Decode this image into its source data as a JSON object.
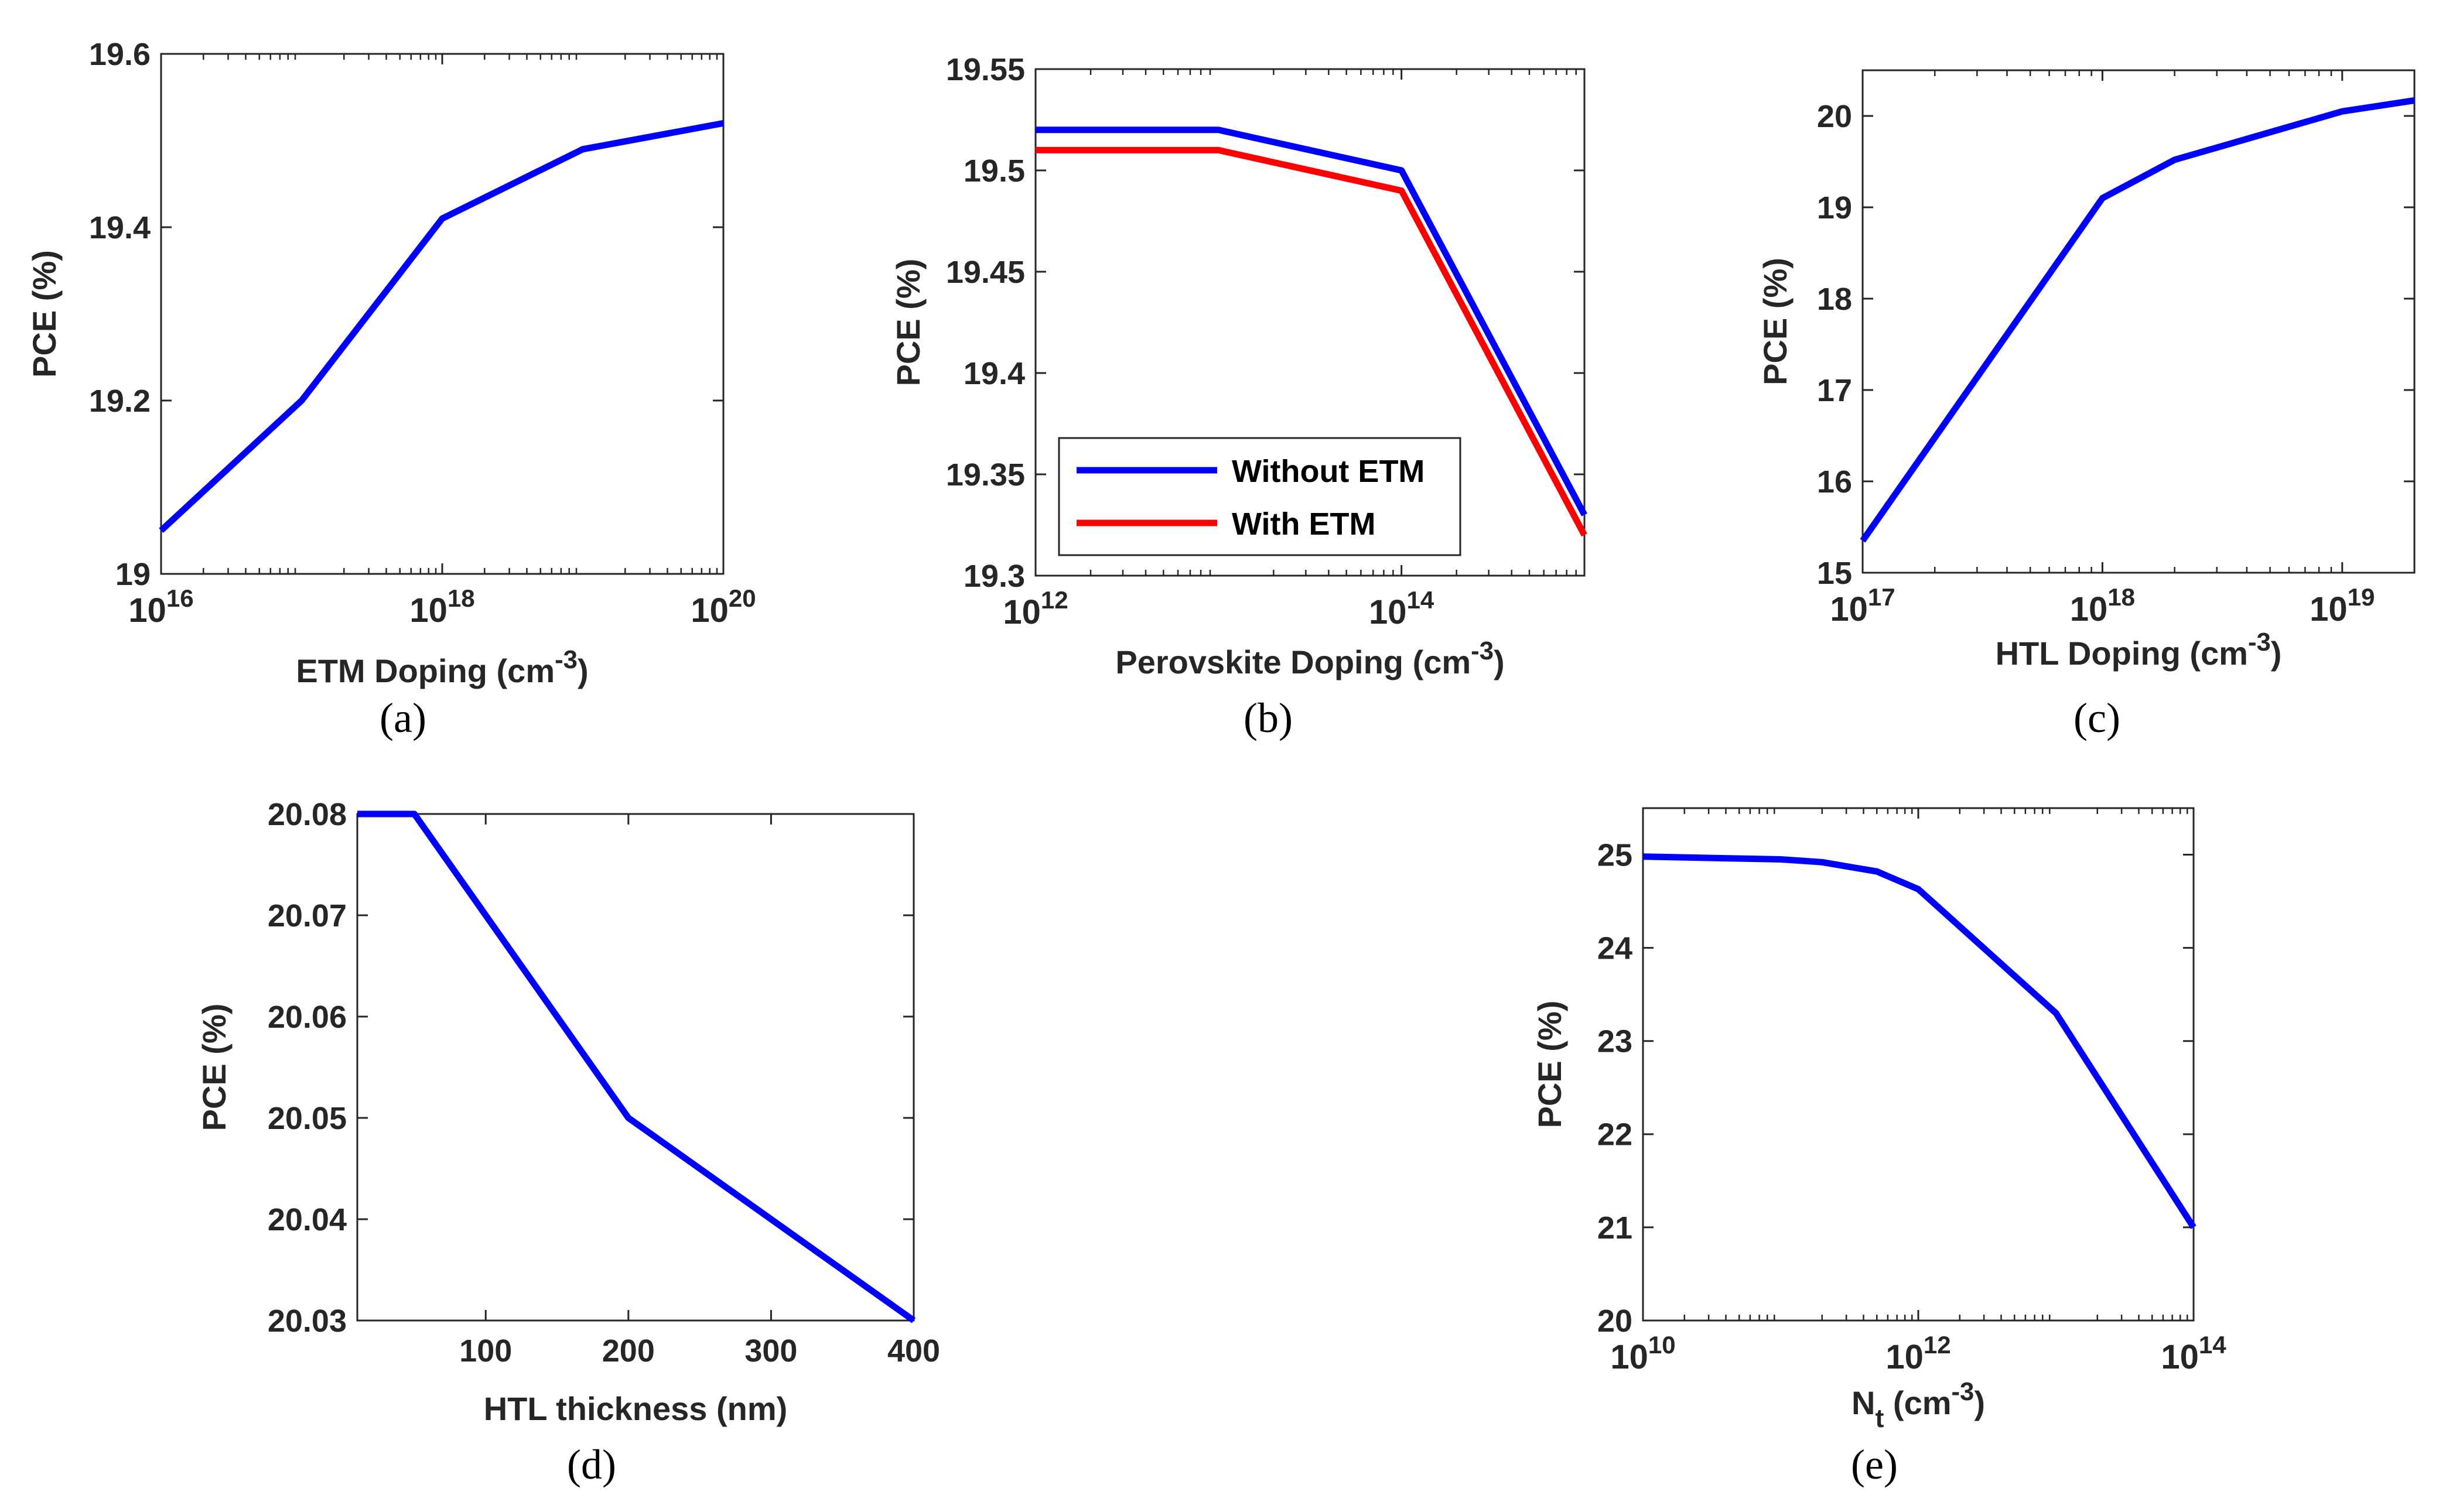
{
  "chart_data": [
    {
      "panel": "(a)",
      "type": "line",
      "x_scale": "log",
      "xlim_exp": [
        16,
        20
      ],
      "ylim": [
        19.0,
        19.6
      ],
      "ylabel": "PCE (%)",
      "xlabel": {
        "main": "ETM Doping (cm",
        "sup": "-3",
        "tail": ")"
      },
      "x_ticks": [
        {
          "base": "10",
          "exp": "16"
        },
        {
          "base": "10",
          "exp": "18"
        },
        {
          "base": "10",
          "exp": "20"
        }
      ],
      "y_ticks": [
        "19",
        "19.2",
        "19.4",
        "19.6"
      ],
      "series": [
        {
          "name": "PCE",
          "color": "#0000ff",
          "x_exp": [
            16,
            17,
            18,
            19,
            20
          ],
          "y": [
            19.05,
            19.2,
            19.41,
            19.49,
            19.52
          ]
        }
      ]
    },
    {
      "panel": "(b)",
      "type": "line",
      "x_scale": "log",
      "xlim_exp": [
        12,
        15
      ],
      "ylim": [
        19.3,
        19.55
      ],
      "ylabel": "PCE (%)",
      "xlabel": {
        "main": "Perovskite Doping (cm",
        "sup": "-3",
        "tail": ")"
      },
      "x_ticks": [
        {
          "base": "10",
          "exp": "12"
        },
        {
          "base": "10",
          "exp": "14"
        }
      ],
      "y_ticks": [
        "19.3",
        "19.35",
        "19.4",
        "19.45",
        "19.5",
        "19.55"
      ],
      "legend": "bottom-left",
      "series": [
        {
          "name": "Without ETM",
          "color": "#0000ff",
          "x_exp": [
            12,
            13,
            14,
            15
          ],
          "y": [
            19.52,
            19.52,
            19.5,
            19.33
          ]
        },
        {
          "name": "With ETM",
          "color": "#ff0000",
          "x_exp": [
            12,
            13,
            14,
            15
          ],
          "y": [
            19.51,
            19.51,
            19.49,
            19.32
          ]
        }
      ]
    },
    {
      "panel": "(c)",
      "type": "line",
      "x_scale": "log",
      "xlim_exp": [
        17,
        19.301
      ],
      "ylim": [
        15,
        20.5
      ],
      "ylabel": "PCE (%)",
      "xlabel": {
        "main": "HTL Doping (cm",
        "sup": "-3",
        "tail": ")"
      },
      "x_ticks": [
        {
          "base": "10",
          "exp": "17"
        },
        {
          "base": "10",
          "exp": "18"
        },
        {
          "base": "10",
          "exp": "19"
        }
      ],
      "y_ticks": [
        "15",
        "16",
        "17",
        "18",
        "19",
        "20"
      ],
      "series": [
        {
          "name": "PCE",
          "color": "#0000ff",
          "x_exp": [
            17,
            18,
            18.301,
            19,
            19.301
          ],
          "y": [
            15.35,
            19.1,
            19.52,
            20.05,
            20.17
          ]
        }
      ]
    },
    {
      "panel": "(d)",
      "type": "line",
      "x_scale": "linear",
      "xlim": [
        10,
        400
      ],
      "ylim": [
        20.03,
        20.08
      ],
      "ylabel": "PCE (%)",
      "xlabel": {
        "main": "HTL thickness (nm)",
        "sup": "",
        "tail": ""
      },
      "x_ticks_lin": [
        "100",
        "200",
        "300",
        "400"
      ],
      "y_ticks": [
        "20.03",
        "20.04",
        "20.05",
        "20.06",
        "20.07",
        "20.08"
      ],
      "series": [
        {
          "name": "PCE",
          "color": "#0000ff",
          "x": [
            10,
            50,
            200,
            400
          ],
          "y": [
            20.08,
            20.08,
            20.05,
            20.03
          ]
        }
      ]
    },
    {
      "panel": "(e)",
      "type": "line",
      "x_scale": "log",
      "xlim_exp": [
        10,
        14
      ],
      "ylim": [
        20,
        25.5
      ],
      "ylabel": "PCE (%)",
      "xlabel": {
        "main": "N",
        "sub": "t",
        "main2": " (cm",
        "sup": "-3",
        "tail": ")"
      },
      "x_ticks": [
        {
          "base": "10",
          "exp": "10"
        },
        {
          "base": "10",
          "exp": "12"
        },
        {
          "base": "10",
          "exp": "14"
        }
      ],
      "y_ticks": [
        "20",
        "21",
        "22",
        "23",
        "24",
        "25"
      ],
      "series": [
        {
          "name": "PCE",
          "color": "#0000ff",
          "x_exp": [
            10,
            11,
            11.301,
            11.699,
            12,
            13,
            14
          ],
          "y": [
            24.98,
            24.95,
            24.92,
            24.82,
            24.63,
            23.3,
            21.0
          ]
        }
      ]
    }
  ],
  "captions": [
    "(a)",
    "(b)",
    "(c)",
    "(d)",
    "(e)"
  ]
}
